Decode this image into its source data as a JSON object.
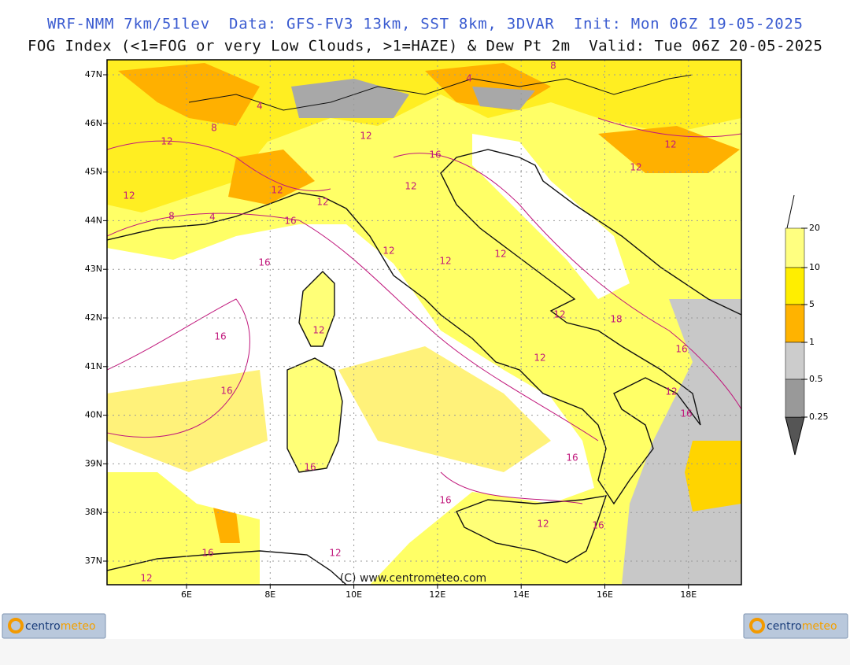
{
  "header": {
    "line1": "WRF-NMM 7km/51lev  Data: GFS-FV3 13km, SST 8km, 3DVAR  Init: Mon 06Z 19-05-2025",
    "line2": "FOG Index (<1=FOG or very Low Clouds, >1=HAZE) & Dew Pt 2m  Valid: Tue 06Z 20-05-2025"
  },
  "map": {
    "lat_labels": [
      "47N",
      "46N",
      "45N",
      "44N",
      "43N",
      "42N",
      "41N",
      "40N",
      "39N",
      "38N",
      "37N"
    ],
    "lon_labels": [
      "6E",
      "8E",
      "10E",
      "12E",
      "14E",
      "16E",
      "18E"
    ],
    "contour_labels": [
      "8",
      "4",
      "4",
      "8",
      "12",
      "12",
      "16",
      "12",
      "12",
      "12",
      "12",
      "12",
      "8",
      "4",
      "12",
      "16",
      "12",
      "12",
      "12",
      "16",
      "12",
      "16",
      "12",
      "18",
      "16",
      "12",
      "16",
      "12",
      "16",
      "16",
      "16",
      "16",
      "12",
      "16",
      "16",
      "12",
      "12"
    ],
    "watermark": "(C) www.centrometeo.com"
  },
  "colorbar": {
    "ticks": [
      20,
      10,
      5,
      1,
      0.5,
      0.25
    ]
  },
  "logos": [
    {
      "a": "centro",
      "b": "meteo"
    },
    {
      "a": "centro",
      "b": "meteo"
    }
  ]
}
